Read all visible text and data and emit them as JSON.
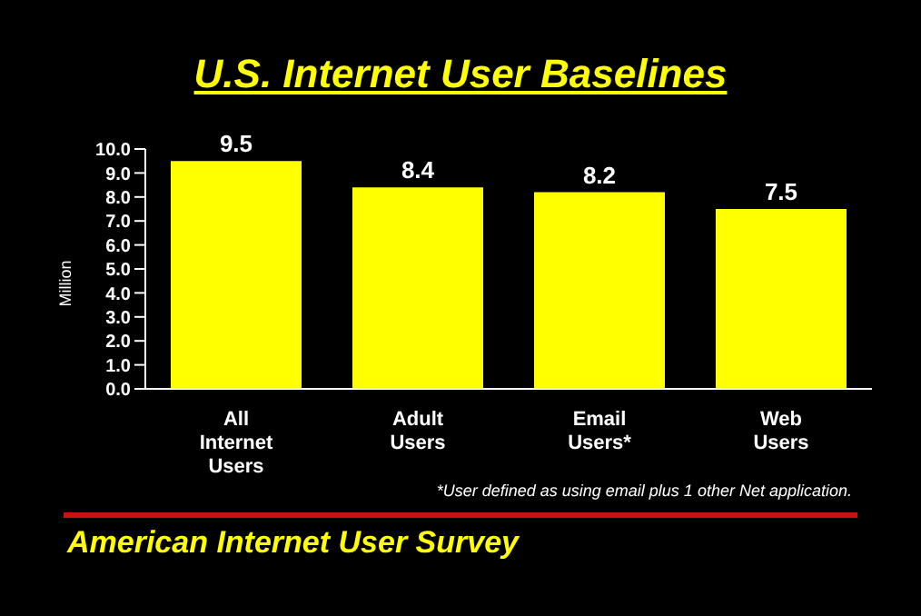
{
  "chart_data": {
    "type": "bar",
    "title": "U.S. Internet User Baselines",
    "ylabel": "Million",
    "categories": [
      "All Internet Users",
      "Adult Users",
      "Email Users*",
      "Web Users"
    ],
    "values": [
      9.5,
      8.4,
      8.2,
      7.5
    ],
    "color": "#ffff00",
    "ylim": [
      0,
      10
    ],
    "yticks": [
      {
        "value": 0,
        "label": "0.0"
      },
      {
        "value": 1,
        "label": "1.0"
      },
      {
        "value": 2,
        "label": "2.0"
      },
      {
        "value": 3,
        "label": "3.0"
      },
      {
        "value": 4,
        "label": "4.0"
      },
      {
        "value": 5,
        "label": "5.0"
      },
      {
        "value": 6,
        "label": "6.0"
      },
      {
        "value": 7,
        "label": "7.0"
      },
      {
        "value": 8,
        "label": "8.0"
      },
      {
        "value": 9,
        "label": "9.0"
      },
      {
        "value": 10,
        "label": "10.0"
      }
    ],
    "data_labels": true,
    "grid": false,
    "legend": false,
    "annotations": [
      "*User defined as using email plus 1 other Net application.",
      "American Internet User Survey"
    ]
  }
}
